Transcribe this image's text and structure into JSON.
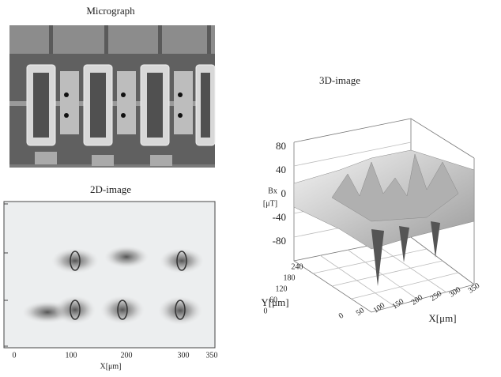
{
  "micrograph": {
    "title": "Micrograph"
  },
  "image_2d": {
    "title": "2D-image",
    "x_label": "X[μm]",
    "x_ticks": [
      "0",
      "100",
      "200",
      "300",
      "350"
    ]
  },
  "image_3d": {
    "title": "3D-image",
    "z_label": [
      "Bx",
      "[μT]"
    ],
    "z_ticks": [
      "80",
      "40",
      "0",
      "-40",
      "-80"
    ],
    "y_label": "Y[μm]",
    "y_ticks": [
      "240",
      "180",
      "120",
      "60",
      "0"
    ],
    "x_label": "X[μm]",
    "x_ticks": [
      "0",
      "50",
      "100",
      "150",
      "200",
      "250",
      "300",
      "350"
    ]
  }
}
